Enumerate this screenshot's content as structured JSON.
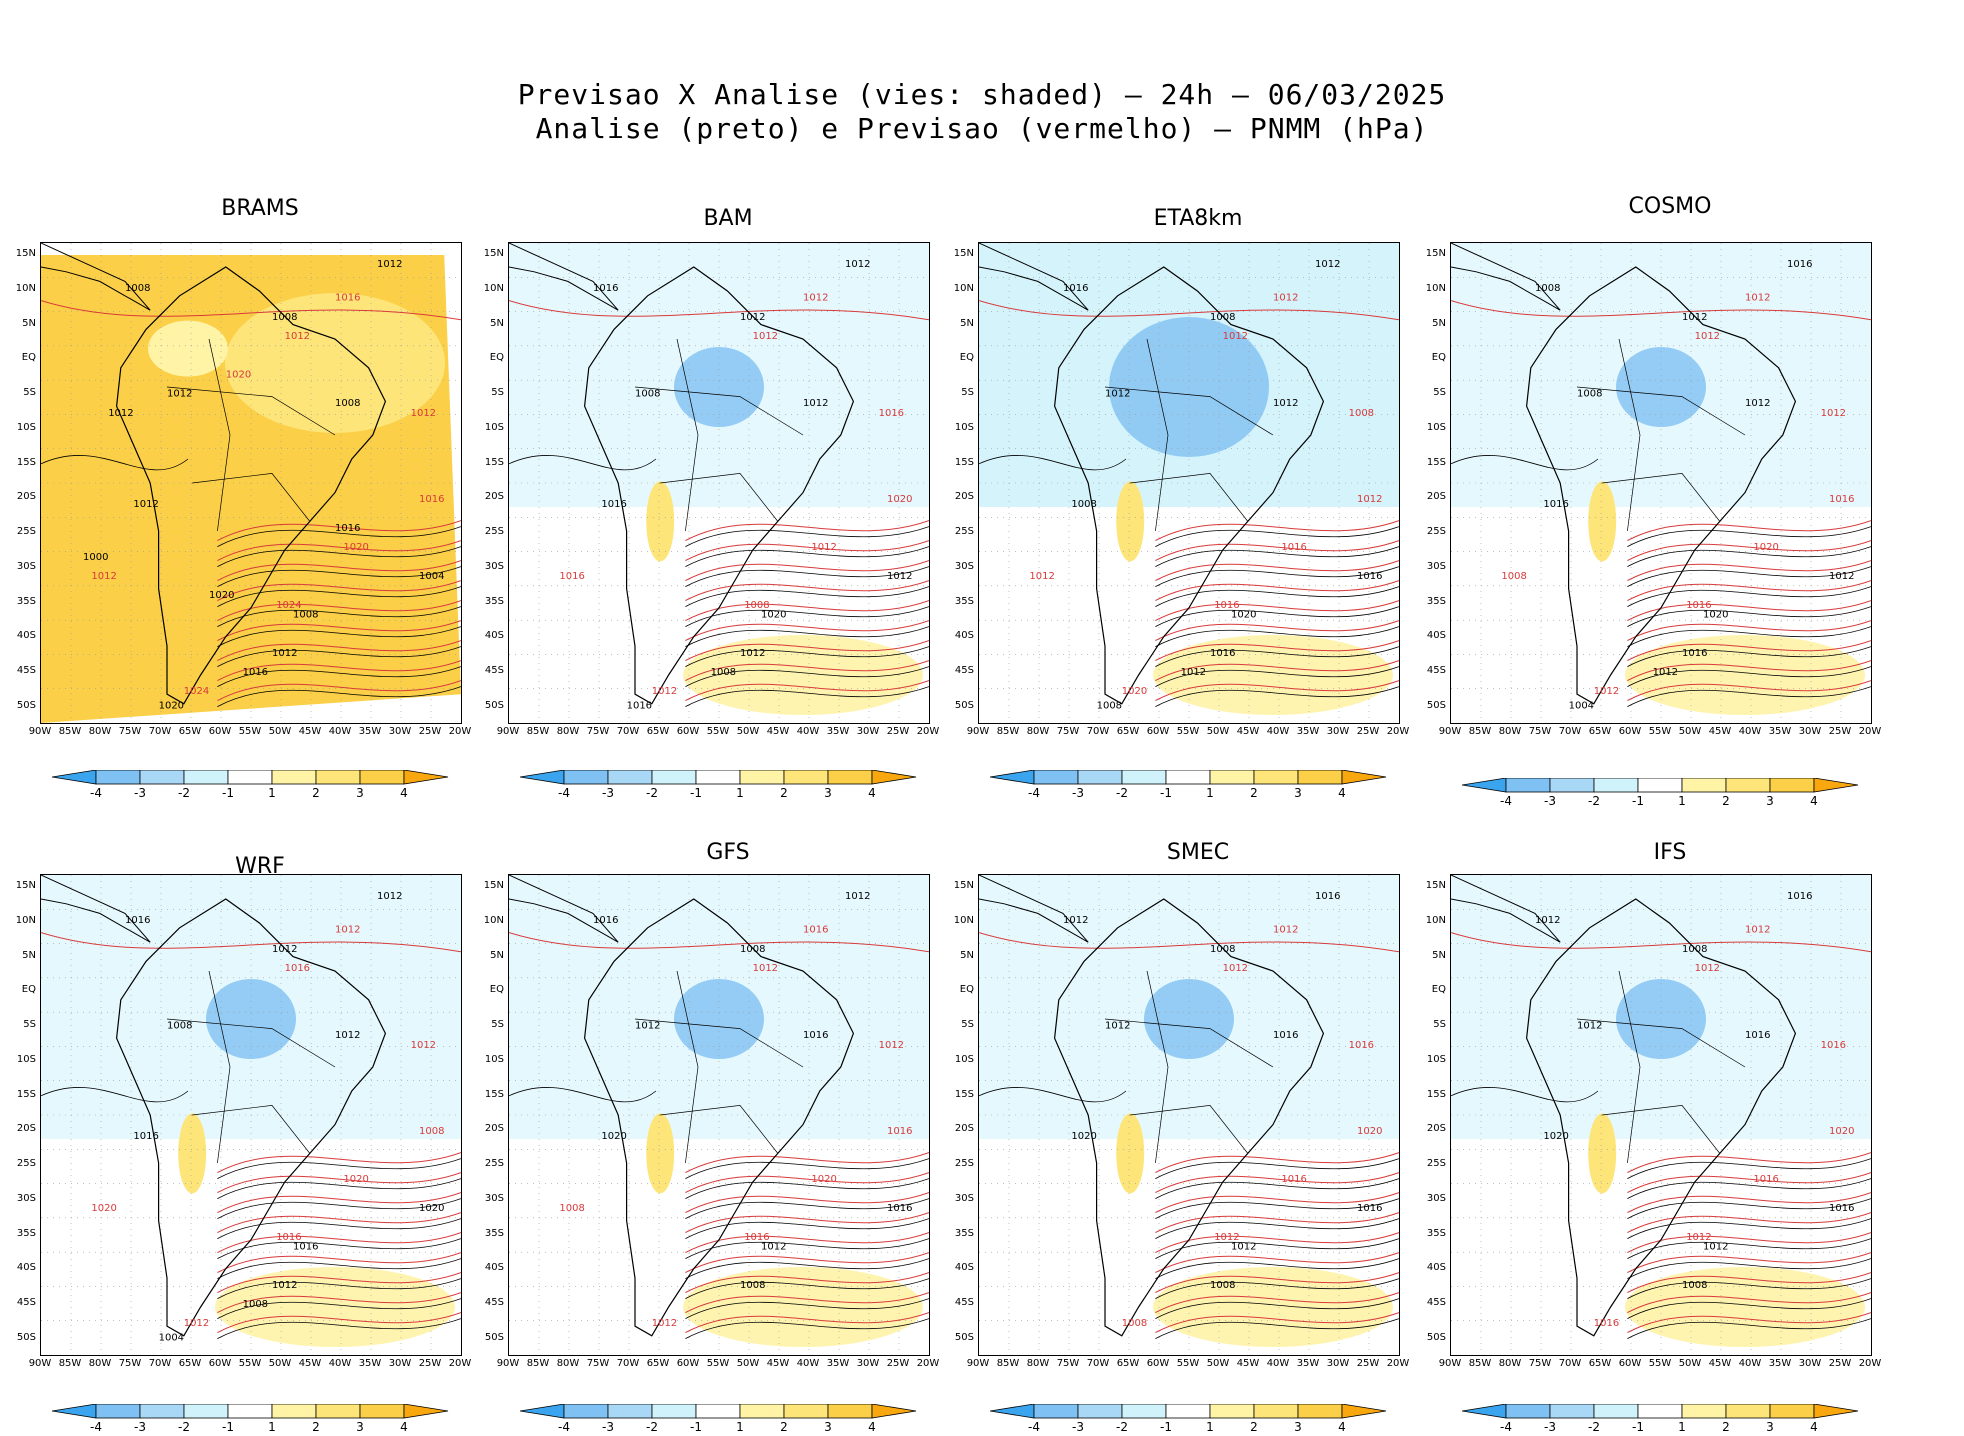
{
  "title_line1": "Previsao X Analise (vies: shaded) – 24h – 06/03/2025",
  "title_line2": "Analise (preto) e Previsao (vermelho) – PNMM (hPa)",
  "lat_ticks": [
    "15N",
    "10N",
    "5N",
    "EQ",
    "5S",
    "10S",
    "15S",
    "20S",
    "25S",
    "30S",
    "35S",
    "40S",
    "45S",
    "50S"
  ],
  "lon_ticks": [
    "90W",
    "85W",
    "80W",
    "75W",
    "70W",
    "65W",
    "60W",
    "55W",
    "50W",
    "45W",
    "40W",
    "35W",
    "30W",
    "25W",
    "20W"
  ],
  "colorbar": {
    "labels": [
      "-4",
      "-3",
      "-2",
      "-1",
      "1",
      "2",
      "3",
      "4"
    ],
    "colors": [
      "#3aa4ee",
      "#7fc1f2",
      "#a9d8f6",
      "#d0f2fb",
      "#ffffff",
      "#fff3a6",
      "#fde57a",
      "#fbcf47",
      "#f9a70f"
    ]
  },
  "contour_colors": {
    "analysis": "#000000",
    "forecast": "#d83a3a"
  },
  "panels": [
    {
      "model": "BRAMS",
      "labels_black": [
        "1012",
        "1008",
        "1008",
        "1012",
        "1008",
        "1012",
        "1004",
        "1008",
        "1012",
        "1016",
        "1020",
        "1016",
        "1000",
        "1020",
        "1012"
      ],
      "labels_red": [
        "1016",
        "1012",
        "1012",
        "1016",
        "1020",
        "1024",
        "1024",
        "1012",
        "1020"
      ]
    },
    {
      "model": "BAM",
      "labels_black": [
        "1012",
        "1016",
        "1012",
        "1008",
        "1012",
        "1016",
        "1012",
        "1020",
        "1012",
        "1008",
        "1016"
      ],
      "labels_red": [
        "1012",
        "1012",
        "1016",
        "1020",
        "1012",
        "1008",
        "1012",
        "1016"
      ]
    },
    {
      "model": "ETA8km",
      "labels_black": [
        "1012",
        "1016",
        "1008",
        "1012",
        "1012",
        "1008",
        "1016",
        "1020",
        "1016",
        "1012",
        "1008"
      ],
      "labels_red": [
        "1012",
        "1012",
        "1008",
        "1012",
        "1016",
        "1016",
        "1020",
        "1012"
      ]
    },
    {
      "model": "COSMO",
      "labels_black": [
        "1016",
        "1008",
        "1012",
        "1008",
        "1012",
        "1016",
        "1012",
        "1020",
        "1016",
        "1012",
        "1004"
      ],
      "labels_red": [
        "1012",
        "1012",
        "1012",
        "1016",
        "1020",
        "1016",
        "1012",
        "1008"
      ]
    },
    {
      "model": "WRF",
      "labels_black": [
        "1012",
        "1016",
        "1012",
        "1008",
        "1012",
        "1016",
        "1020",
        "1016",
        "1012",
        "1008",
        "1004"
      ],
      "labels_red": [
        "1012",
        "1016",
        "1012",
        "1008",
        "1020",
        "1016",
        "1012",
        "1020"
      ]
    },
    {
      "model": "GFS",
      "labels_black": [
        "1012",
        "1016",
        "1008",
        "1012",
        "1016",
        "1020",
        "1016",
        "1012",
        "1008"
      ],
      "labels_red": [
        "1016",
        "1012",
        "1012",
        "1016",
        "1020",
        "1016",
        "1012",
        "1008"
      ]
    },
    {
      "model": "SMEC",
      "labels_black": [
        "1016",
        "1012",
        "1008",
        "1012",
        "1016",
        "1020",
        "1016",
        "1012",
        "1008"
      ],
      "labels_red": [
        "1012",
        "1012",
        "1016",
        "1020",
        "1016",
        "1012",
        "1008"
      ]
    },
    {
      "model": "IFS",
      "labels_black": [
        "1016",
        "1012",
        "1008",
        "1012",
        "1016",
        "1020",
        "1016",
        "1012",
        "1008"
      ],
      "labels_red": [
        "1012",
        "1012",
        "1016",
        "1020",
        "1016",
        "1012",
        "1016"
      ]
    }
  ]
}
